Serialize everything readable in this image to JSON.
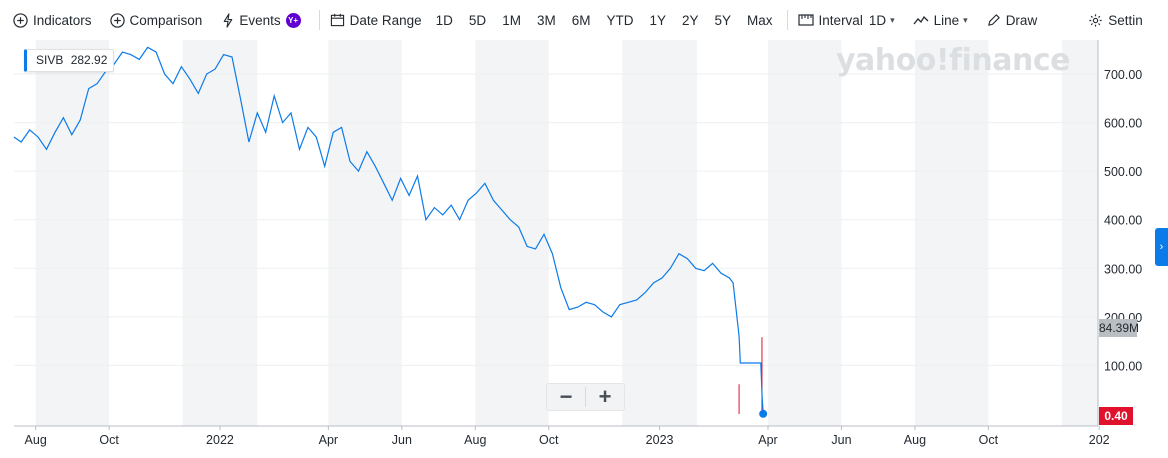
{
  "toolbar": {
    "indicators": "Indicators",
    "comparison": "Comparison",
    "events": "Events",
    "events_badge": "Y+",
    "date_range": "Date Range",
    "ranges": [
      "1D",
      "5D",
      "1M",
      "3M",
      "6M",
      "YTD",
      "1Y",
      "2Y",
      "5Y",
      "Max"
    ],
    "interval_label": "Interval",
    "interval_value": "1D",
    "chart_type": "Line",
    "draw": "Draw",
    "settings": "Settin"
  },
  "watermark": "yahoo!finance",
  "symbol_label": {
    "symbol": "SIVB",
    "price": "282.92"
  },
  "last_price_label": "84.39M",
  "current_price_label": "0.40",
  "zoom": {
    "minus": "−",
    "plus": "+"
  },
  "colors": {
    "line": "#0c7bea",
    "accent": "#0c7bea",
    "down": "#e0112b",
    "band": "#f3f4f5"
  },
  "chart_data": {
    "type": "line",
    "title": "",
    "series": [
      {
        "name": "SIVB",
        "x": [
          "2021-07-14",
          "2021-07-20",
          "2021-07-27",
          "2021-08-03",
          "2021-08-10",
          "2021-08-17",
          "2021-08-24",
          "2021-08-31",
          "2021-09-07",
          "2021-09-14",
          "2021-09-21",
          "2021-09-28",
          "2021-10-05",
          "2021-10-12",
          "2021-10-19",
          "2021-10-26",
          "2021-11-02",
          "2021-11-09",
          "2021-11-16",
          "2021-11-23",
          "2021-11-30",
          "2021-12-07",
          "2021-12-14",
          "2021-12-21",
          "2021-12-28",
          "2022-01-04",
          "2022-01-11",
          "2022-01-18",
          "2022-01-25",
          "2022-02-01",
          "2022-02-08",
          "2022-02-15",
          "2022-02-22",
          "2022-03-01",
          "2022-03-08",
          "2022-03-15",
          "2022-03-22",
          "2022-03-29",
          "2022-04-05",
          "2022-04-12",
          "2022-04-19",
          "2022-04-26",
          "2022-05-03",
          "2022-05-10",
          "2022-05-17",
          "2022-05-24",
          "2022-05-31",
          "2022-06-07",
          "2022-06-14",
          "2022-06-21",
          "2022-06-28",
          "2022-07-05",
          "2022-07-12",
          "2022-07-19",
          "2022-07-26",
          "2022-08-02",
          "2022-08-09",
          "2022-08-16",
          "2022-08-23",
          "2022-08-30",
          "2022-09-06",
          "2022-09-13",
          "2022-09-20",
          "2022-09-27",
          "2022-10-04",
          "2022-10-11",
          "2022-10-18",
          "2022-10-25",
          "2022-11-01",
          "2022-11-08",
          "2022-11-15",
          "2022-11-22",
          "2022-11-29",
          "2022-12-06",
          "2022-12-13",
          "2022-12-20",
          "2022-12-27",
          "2023-01-03",
          "2023-01-10",
          "2023-01-17",
          "2023-01-24",
          "2023-01-31",
          "2023-02-07",
          "2023-02-14",
          "2023-02-21",
          "2023-02-28",
          "2023-03-03",
          "2023-03-08",
          "2023-03-09",
          "2023-03-10",
          "2023-03-20",
          "2023-03-26",
          "2023-03-27",
          "2023-03-28"
        ],
        "values": [
          570,
          560,
          585,
          570,
          545,
          580,
          610,
          575,
          605,
          670,
          680,
          705,
          720,
          745,
          740,
          730,
          755,
          745,
          700,
          680,
          715,
          690,
          660,
          700,
          710,
          740,
          735,
          650,
          560,
          620,
          580,
          655,
          600,
          620,
          545,
          590,
          570,
          510,
          580,
          590,
          520,
          500,
          540,
          510,
          475,
          440,
          485,
          450,
          490,
          400,
          425,
          410,
          430,
          400,
          440,
          455,
          475,
          440,
          420,
          400,
          385,
          345,
          340,
          370,
          330,
          260,
          215,
          220,
          230,
          225,
          210,
          200,
          225,
          230,
          235,
          250,
          270,
          280,
          300,
          330,
          320,
          300,
          295,
          310,
          290,
          280,
          270,
          160,
          105,
          105,
          105,
          105,
          40,
          0.4
        ]
      }
    ],
    "xlabel": "",
    "ylabel": "",
    "x_tick_labels": [
      "Aug",
      "Oct",
      "2022",
      "Apr",
      "Jun",
      "Aug",
      "Oct",
      "2023",
      "Apr",
      "Jun",
      "Aug",
      "Oct",
      "202"
    ],
    "y_tick_labels": [
      "100.00",
      "200.00",
      "300.00",
      "400.00",
      "500.00",
      "600.00",
      "700.00"
    ],
    "ylim": [
      0,
      770
    ],
    "xlim": [
      "2021-07-14",
      "2023-12-31"
    ],
    "grid": true,
    "volume": {
      "spikes": [
        62,
        160
      ],
      "dates": [
        "2023-03-08",
        "2023-03-27"
      ]
    },
    "legend": "none"
  }
}
